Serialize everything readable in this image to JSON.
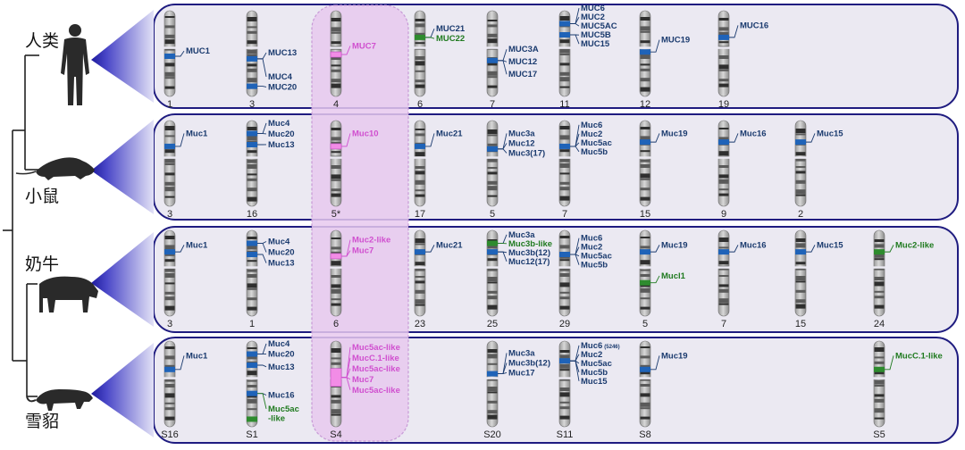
{
  "colors": {
    "panel_fill": "#ebe9f2",
    "panel_border": "#1f1c80",
    "highlight_fill": "#e8c9ee",
    "gene_blue": "#1a3a6e",
    "gene_green": "#1f7a1f",
    "gene_pink": "#d04fcf",
    "band_blue": "#1f63b8",
    "band_green": "#2e8b2e",
    "band_pink": "#f28ce6"
  },
  "icons": [
    "human-silhouette-icon",
    "mouse-silhouette-icon",
    "cow-silhouette-icon",
    "ferret-silhouette-icon"
  ],
  "species": [
    {
      "name": "人类",
      "chromosomes": [
        {
          "label": "1",
          "bands": [
            {
              "pos": 0.5,
              "color": "blue"
            }
          ],
          "genes": [
            {
              "name": "MUC1",
              "color": "blue"
            }
          ]
        },
        {
          "label": "3",
          "bands": [
            {
              "pos": 0.53,
              "color": "blue"
            },
            {
              "pos": 0.85,
              "color": "blue"
            }
          ],
          "genes": [
            {
              "name": "MUC13",
              "color": "blue"
            },
            {
              "name": "MUC4",
              "color": "blue"
            },
            {
              "name": "MUC20",
              "color": "blue"
            }
          ]
        },
        {
          "label": "4",
          "bands": [
            {
              "pos": 0.48,
              "color": "pink"
            }
          ],
          "genes": [
            {
              "name": "MUC7",
              "color": "pink"
            }
          ]
        },
        {
          "label": "6",
          "bands": [
            {
              "pos": 0.28,
              "color": "green"
            }
          ],
          "genes": [
            {
              "name": "MUC21",
              "color": "blue"
            },
            {
              "name": "MUC22",
              "color": "green"
            }
          ]
        },
        {
          "label": "7",
          "bands": [
            {
              "pos": 0.55,
              "color": "blue"
            }
          ],
          "genes": [
            {
              "name": "MUC3A",
              "color": "blue"
            },
            {
              "name": "MUC12",
              "color": "blue"
            },
            {
              "name": "MUC17",
              "color": "blue"
            }
          ]
        },
        {
          "label": "11",
          "bands": [
            {
              "pos": 0.12,
              "color": "blue"
            },
            {
              "pos": 0.25,
              "color": "blue"
            }
          ],
          "genes": [
            {
              "name": "MUC6",
              "color": "blue"
            },
            {
              "name": "MUC2",
              "color": "blue"
            },
            {
              "name": "MUC5AC",
              "color": "blue"
            },
            {
              "name": "MUC5B",
              "color": "blue"
            },
            {
              "name": "MUC15",
              "color": "blue"
            }
          ]
        },
        {
          "label": "12",
          "bands": [
            {
              "pos": 0.45,
              "color": "blue"
            }
          ],
          "genes": [
            {
              "name": "MUC19",
              "color": "blue"
            }
          ]
        },
        {
          "label": "19",
          "bands": [
            {
              "pos": 0.28,
              "color": "blue"
            }
          ],
          "genes": [
            {
              "name": "MUC16",
              "color": "blue"
            }
          ]
        }
      ]
    },
    {
      "name": "小鼠",
      "chromosomes": [
        {
          "label": "3",
          "bands": [
            {
              "pos": 0.27,
              "color": "blue"
            }
          ],
          "genes": [
            {
              "name": "Muc1",
              "color": "blue"
            }
          ]
        },
        {
          "label": "16",
          "bands": [
            {
              "pos": 0.12,
              "color": "blue"
            },
            {
              "pos": 0.25,
              "color": "blue"
            }
          ],
          "genes": [
            {
              "name": "Muc4",
              "color": "blue"
            },
            {
              "name": "Muc20",
              "color": "blue"
            },
            {
              "name": "Muc13",
              "color": "blue"
            }
          ]
        },
        {
          "label": "5*",
          "bands": [
            {
              "pos": 0.27,
              "color": "pink"
            }
          ],
          "genes": [
            {
              "name": "Muc10",
              "color": "pink"
            }
          ]
        },
        {
          "label": "17",
          "bands": [
            {
              "pos": 0.27,
              "color": "blue"
            }
          ],
          "genes": [
            {
              "name": "Muc21",
              "color": "blue"
            }
          ]
        },
        {
          "label": "5",
          "bands": [
            {
              "pos": 0.3,
              "color": "blue"
            }
          ],
          "genes": [
            {
              "name": "Muc3a",
              "color": "blue"
            },
            {
              "name": "Muc12",
              "color": "blue"
            },
            {
              "name": "Muc3(17)",
              "color": "blue"
            }
          ]
        },
        {
          "label": "7",
          "bands": [
            {
              "pos": 0.27,
              "color": "blue"
            }
          ],
          "genes": [
            {
              "name": "Muc6",
              "color": "blue"
            },
            {
              "name": "Muc2",
              "color": "blue"
            },
            {
              "name": "Muc5ac",
              "color": "blue"
            },
            {
              "name": "Muc5b",
              "color": "blue"
            }
          ]
        },
        {
          "label": "15",
          "bands": [
            {
              "pos": 0.22,
              "color": "blue"
            }
          ],
          "genes": [
            {
              "name": "Muc19",
              "color": "blue"
            }
          ]
        },
        {
          "label": "9",
          "bands": [
            {
              "pos": 0.22,
              "color": "blue"
            }
          ],
          "genes": [
            {
              "name": "Muc16",
              "color": "blue"
            }
          ]
        },
        {
          "label": "2",
          "bands": [
            {
              "pos": 0.22,
              "color": "blue"
            }
          ],
          "genes": [
            {
              "name": "Muc15",
              "color": "blue"
            }
          ]
        }
      ]
    },
    {
      "name": "奶牛",
      "chromosomes": [
        {
          "label": "3",
          "bands": [
            {
              "pos": 0.22,
              "color": "blue"
            }
          ],
          "genes": [
            {
              "name": "Muc1",
              "color": "blue"
            }
          ]
        },
        {
          "label": "1",
          "bands": [
            {
              "pos": 0.12,
              "color": "blue"
            },
            {
              "pos": 0.25,
              "color": "blue"
            }
          ],
          "genes": [
            {
              "name": "Muc4",
              "color": "blue"
            },
            {
              "name": "Muc20",
              "color": "blue"
            },
            {
              "name": "Muc13",
              "color": "blue"
            }
          ]
        },
        {
          "label": "6",
          "bands": [
            {
              "pos": 0.27,
              "color": "pink"
            }
          ],
          "genes": [
            {
              "name": "Muc2-like",
              "color": "pink"
            },
            {
              "name": "Muc7",
              "color": "pink"
            }
          ]
        },
        {
          "label": "23",
          "bands": [
            {
              "pos": 0.22,
              "color": "blue"
            }
          ],
          "genes": [
            {
              "name": "Muc21",
              "color": "blue"
            }
          ]
        },
        {
          "label": "25",
          "bands": [
            {
              "pos": 0.12,
              "color": "green"
            },
            {
              "pos": 0.22,
              "color": "blue"
            }
          ],
          "genes": [
            {
              "name": "Muc3a",
              "color": "blue"
            },
            {
              "name": "Muc3b-like",
              "color": "green"
            },
            {
              "name": "Muc3b(12)",
              "color": "blue"
            },
            {
              "name": "Muc12(17)",
              "color": "blue"
            }
          ]
        },
        {
          "label": "29",
          "bands": [
            {
              "pos": 0.25,
              "color": "blue"
            }
          ],
          "genes": [
            {
              "name": "Muc6",
              "color": "blue"
            },
            {
              "name": "Muc2",
              "color": "blue"
            },
            {
              "name": "Muc5ac",
              "color": "blue"
            },
            {
              "name": "Muc5b",
              "color": "blue"
            }
          ]
        },
        {
          "label": "5",
          "bands": [
            {
              "pos": 0.22,
              "color": "blue"
            },
            {
              "pos": 0.58,
              "color": "green"
            }
          ],
          "genes": [
            {
              "name": "Muc19",
              "color": "blue"
            },
            {
              "name": "Mucl1",
              "color": "green"
            }
          ]
        },
        {
          "label": "7",
          "bands": [
            {
              "pos": 0.22,
              "color": "blue"
            }
          ],
          "genes": [
            {
              "name": "Muc16",
              "color": "blue"
            }
          ]
        },
        {
          "label": "15",
          "bands": [
            {
              "pos": 0.22,
              "color": "blue"
            }
          ],
          "genes": [
            {
              "name": "Muc15",
              "color": "blue"
            }
          ]
        },
        {
          "label": "24",
          "bands": [
            {
              "pos": 0.22,
              "color": "green"
            }
          ],
          "genes": [
            {
              "name": "Muc2-like",
              "color": "green"
            }
          ]
        }
      ]
    },
    {
      "name": "雪貂",
      "chromosomes": [
        {
          "label": "S16",
          "bands": [
            {
              "pos": 0.3,
              "color": "blue"
            }
          ],
          "genes": [
            {
              "name": "Muc1",
              "color": "blue"
            }
          ]
        },
        {
          "label": "S1",
          "bands": [
            {
              "pos": 0.12,
              "color": "blue"
            },
            {
              "pos": 0.25,
              "color": "blue"
            },
            {
              "pos": 0.58,
              "color": "blue"
            },
            {
              "pos": 0.88,
              "color": "green"
            }
          ],
          "genes": [
            {
              "name": "Muc4",
              "color": "blue"
            },
            {
              "name": "Muc20",
              "color": "blue"
            },
            {
              "name": "Muc13",
              "color": "blue"
            },
            {
              "name": "Muc16",
              "color": "blue"
            },
            {
              "name": "Muc5ac",
              "color": "green"
            },
            {
              "name": "-like",
              "color": "green"
            }
          ]
        },
        {
          "label": "S4",
          "bands": [
            {
              "pos": 0.32,
              "color": "pink"
            }
          ],
          "genes": [
            {
              "name": "Muc5ac-like",
              "color": "pink"
            },
            {
              "name": "MucC.1-like",
              "color": "pink"
            },
            {
              "name": "Muc5ac-like",
              "color": "pink"
            },
            {
              "name": "Muc7",
              "color": "pink"
            },
            {
              "name": "Muc5ac-like",
              "color": "pink"
            }
          ]
        },
        {
          "label": "S20",
          "bands": [
            {
              "pos": 0.35,
              "color": "blue"
            }
          ],
          "genes": [
            {
              "name": "Muc3a",
              "color": "blue"
            },
            {
              "name": "Muc3b(12)",
              "color": "blue"
            },
            {
              "name": "Muc17",
              "color": "blue"
            }
          ]
        },
        {
          "label": "S11",
          "bands": [
            {
              "pos": 0.2,
              "color": "blue"
            }
          ],
          "genes": [
            {
              "name": "Muc6",
              "color": "blue"
            },
            {
              "name": "Muc2",
              "color": "blue"
            },
            {
              "name": "Muc5ac",
              "color": "blue"
            },
            {
              "name": "Muc5b",
              "color": "blue"
            },
            {
              "name": "Muc15",
              "color": "blue"
            }
          ]
        },
        {
          "label": "S8",
          "bands": [
            {
              "pos": 0.3,
              "color": "blue"
            }
          ],
          "genes": [
            {
              "name": "Muc19",
              "color": "blue"
            }
          ]
        },
        {
          "label": "S5",
          "bands": [
            {
              "pos": 0.3,
              "color": "green"
            }
          ],
          "genes": [
            {
              "name": "MucC.1-like",
              "color": "green"
            }
          ]
        }
      ]
    }
  ],
  "annotations": {
    "s11_size_note": "(5246)"
  }
}
